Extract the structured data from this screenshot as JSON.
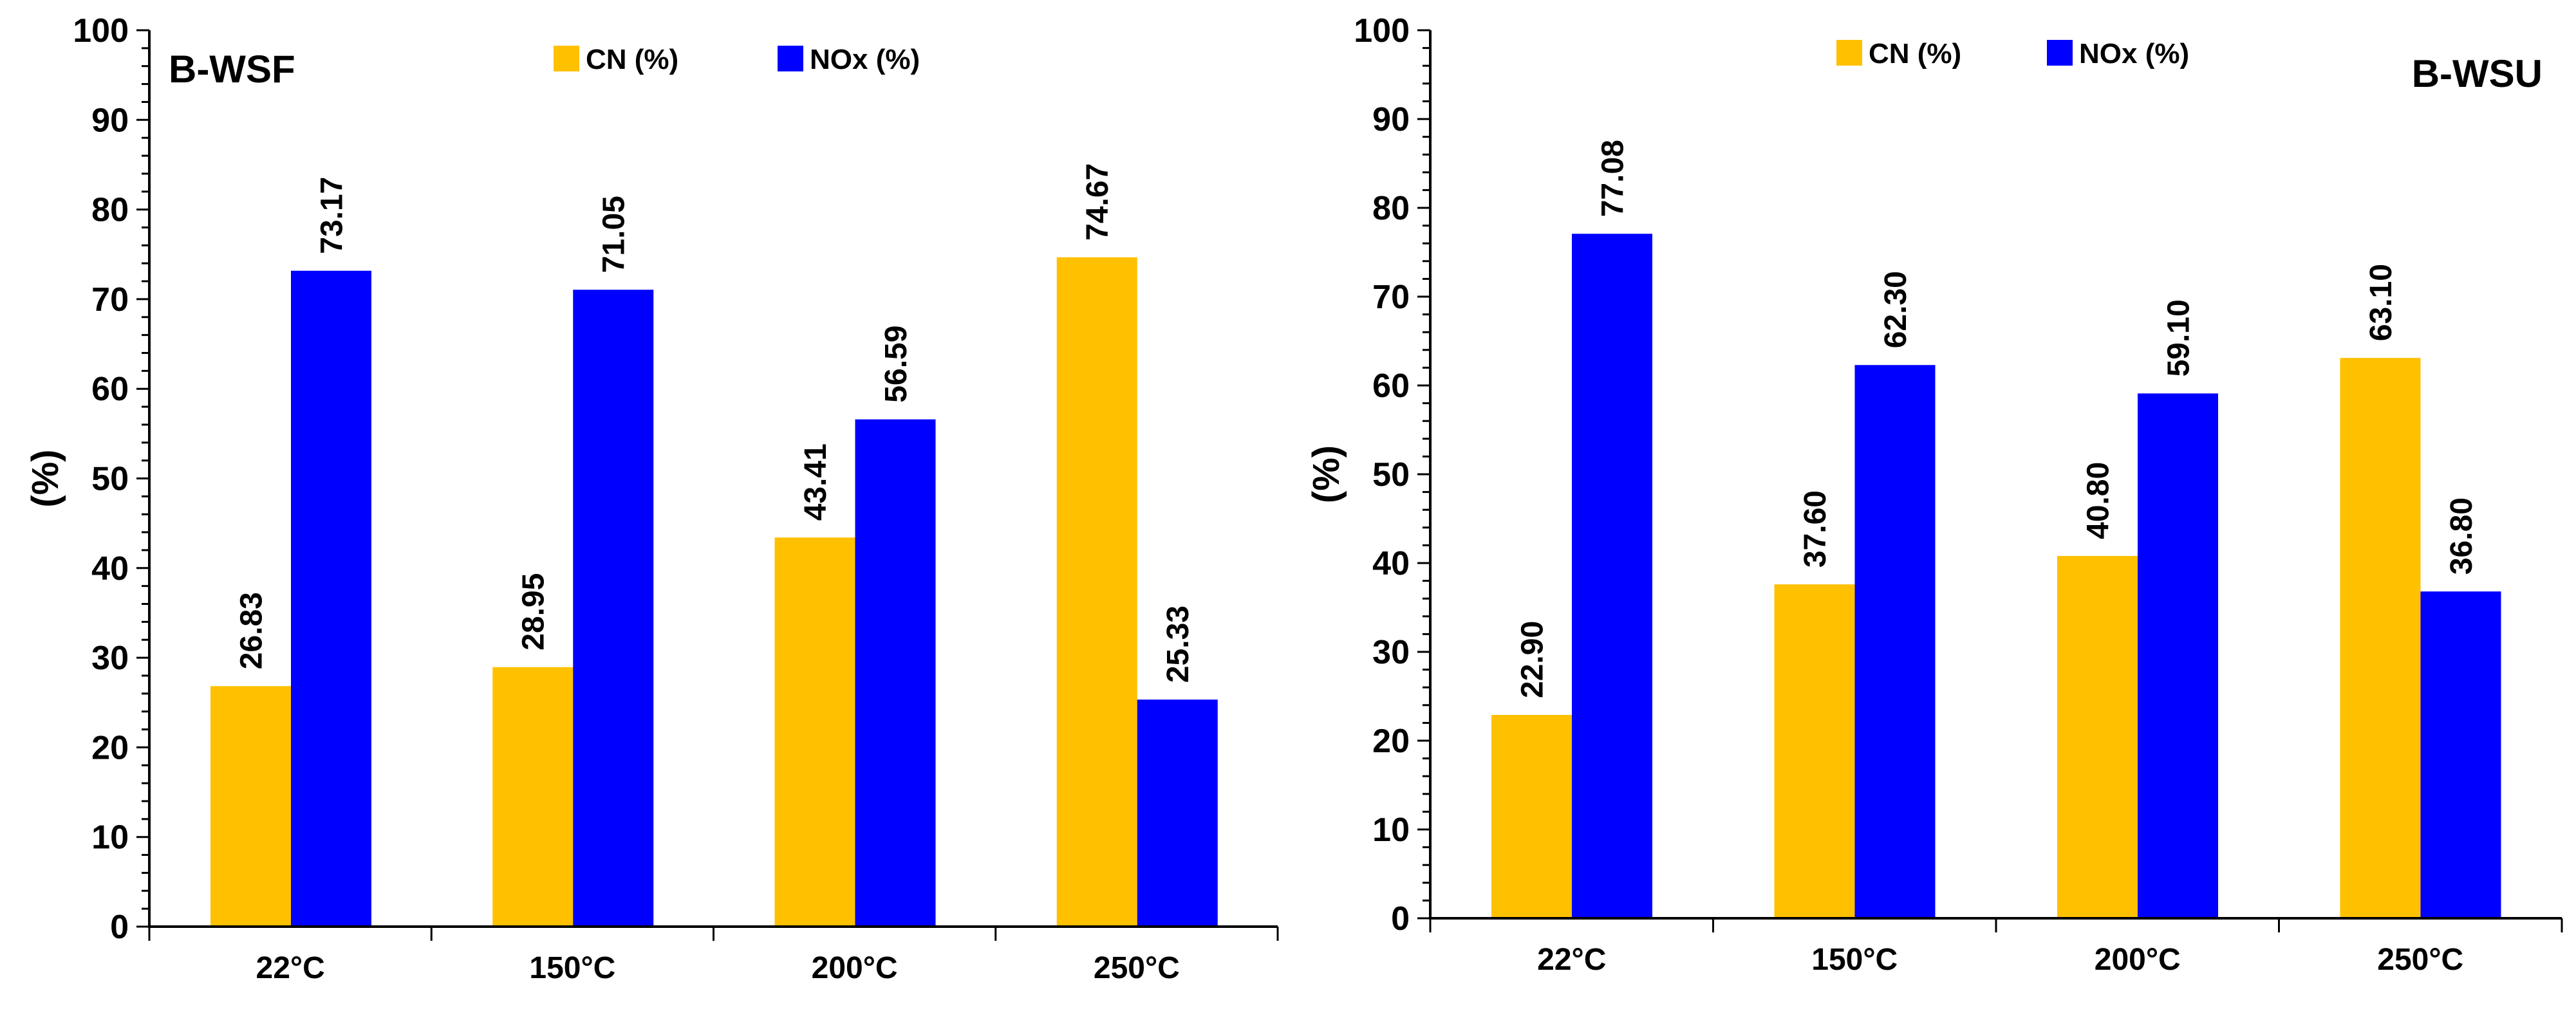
{
  "colors": {
    "cn": "#ffc000",
    "nox": "#0000ff",
    "axis": "#000000"
  },
  "chart_data": [
    {
      "type": "bar",
      "title": "B-WSF",
      "title_position": "top-left",
      "legend_position": "top-center",
      "xlabel": "",
      "ylabel": "(%)",
      "ylim": [
        0,
        100
      ],
      "yticks": [
        "0",
        "10",
        "20",
        "30",
        "40",
        "50",
        "60",
        "70",
        "80",
        "90",
        "100"
      ],
      "categories": [
        "22°C",
        "150°C",
        "200°C",
        "250°C"
      ],
      "series": [
        {
          "name": "CN (%)",
          "values": [
            26.83,
            28.95,
            43.41,
            74.67
          ],
          "labels": [
            "26.83",
            "28.95",
            "43.41",
            "74.67"
          ]
        },
        {
          "name": "NOx (%)",
          "values": [
            73.17,
            71.05,
            56.59,
            25.33
          ],
          "labels": [
            "73.17",
            "71.05",
            "56.59",
            "25.33"
          ]
        }
      ]
    },
    {
      "type": "bar",
      "title": "B-WSU",
      "title_position": "top-right",
      "legend_position": "top-center",
      "xlabel": "",
      "ylabel": "(%)",
      "ylim": [
        0,
        100
      ],
      "yticks": [
        "0",
        "10",
        "20",
        "30",
        "40",
        "50",
        "60",
        "70",
        "80",
        "90",
        "100"
      ],
      "categories": [
        "22°C",
        "150°C",
        "200°C",
        "250°C"
      ],
      "series": [
        {
          "name": "CN (%)",
          "values": [
            22.9,
            37.6,
            40.8,
            63.1
          ],
          "labels": [
            "22.90",
            "37.60",
            "40.80",
            "63.10"
          ]
        },
        {
          "name": "NOx (%)",
          "values": [
            77.08,
            62.3,
            59.1,
            36.8
          ],
          "labels": [
            "77.08",
            "62.30",
            "59.10",
            "36.80"
          ]
        }
      ]
    }
  ]
}
